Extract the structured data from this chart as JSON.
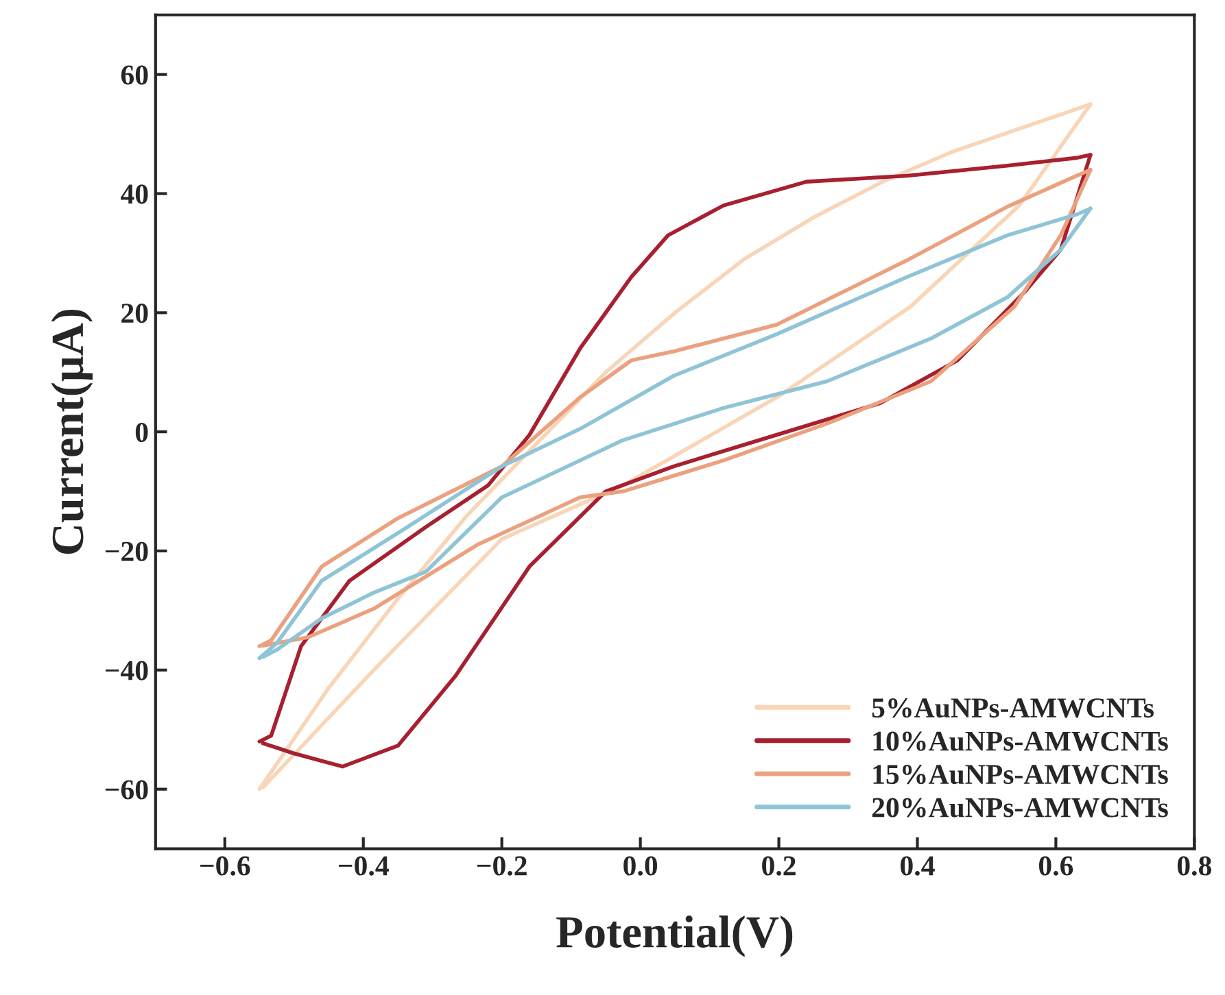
{
  "chart_data": {
    "type": "line",
    "xlabel": "Potential(V)",
    "ylabel": "Current(μA)",
    "xlim": [
      -0.7,
      0.8
    ],
    "ylim": [
      -70,
      70
    ],
    "xticks": [
      {
        "value": -0.6,
        "label": "−0.6"
      },
      {
        "value": -0.4,
        "label": "−0.4"
      },
      {
        "value": -0.2,
        "label": "−0.2"
      },
      {
        "value": 0.0,
        "label": "0.0"
      },
      {
        "value": 0.2,
        "label": "0.2"
      },
      {
        "value": 0.4,
        "label": "0.4"
      },
      {
        "value": 0.6,
        "label": "0.6"
      },
      {
        "value": 0.8,
        "label": "0.8"
      }
    ],
    "yticks": [
      {
        "value": -60,
        "label": "−60"
      },
      {
        "value": -40,
        "label": "−40"
      },
      {
        "value": -20,
        "label": "−20"
      },
      0,
      20,
      40,
      60
    ],
    "grid": false,
    "legend": "bottom right",
    "marker": "none",
    "line_style": "solid",
    "series": [
      {
        "name": "5%AuNPs-AMWCNTs",
        "color": "#f9d5b8",
        "x": [
          -0.55,
          -0.45,
          -0.35,
          -0.25,
          -0.15,
          -0.05,
          0.05,
          0.15,
          0.25,
          0.35,
          0.45,
          0.55,
          0.65
        ],
        "values": [
          -60,
          -43,
          -28,
          -14,
          -2,
          10,
          20,
          29,
          36,
          42,
          47,
          51,
          55
        ]
      },
      {
        "color": "#f9d5b8",
        "x": [
          0.65,
          0.547,
          0.39,
          0.2,
          -0.025,
          -0.2,
          -0.385,
          -0.545
        ],
        "values": [
          55,
          38,
          21,
          6,
          -9,
          -18,
          -40,
          -59.7
        ]
      },
      {
        "name": "10%AuNPs-AMWCNTs",
        "color": "#a8202f",
        "x": [
          -0.55,
          -0.533,
          -0.49,
          -0.42,
          -0.31,
          -0.22,
          -0.16,
          -0.087,
          -0.013,
          0.04,
          0.12,
          0.24,
          0.385,
          0.53,
          0.63,
          0.65
        ],
        "values": [
          -52,
          -51,
          -36,
          -25,
          -16,
          -9,
          -0.5,
          14,
          26,
          33,
          38,
          42,
          43,
          44.7,
          46,
          46.5
        ]
      },
      {
        "color": "#a8202f",
        "x": [
          0.65,
          0.607,
          0.555,
          0.458,
          0.346,
          0.197,
          0.048,
          -0.05,
          -0.16,
          -0.267,
          -0.35,
          -0.43,
          -0.5,
          -0.545
        ],
        "values": [
          46.5,
          30.6,
          23.5,
          12,
          4.8,
          -0.5,
          -5.8,
          -10,
          -22.6,
          -41,
          -52.7,
          -56.2,
          -54,
          -52.3
        ]
      },
      {
        "name": "15%AuNPs-AMWCNTs",
        "color": "#eba07e",
        "x": [
          -0.55,
          -0.533,
          -0.46,
          -0.35,
          -0.2,
          -0.087,
          -0.013,
          0.048,
          0.197,
          0.385,
          0.53,
          0.63,
          0.65
        ],
        "values": [
          -36,
          -35,
          -22.6,
          -14.5,
          -5.8,
          5.8,
          12,
          13.5,
          18,
          28.8,
          37.8,
          43,
          44
        ]
      },
      {
        "color": "#eba07e",
        "x": [
          0.65,
          0.607,
          0.54,
          0.42,
          0.27,
          0.12,
          -0.025,
          -0.087,
          -0.236,
          -0.385,
          -0.48,
          -0.545
        ],
        "values": [
          44,
          33,
          21,
          8.5,
          1.4,
          -4.8,
          -10,
          -11,
          -19,
          -29.7,
          -34.5,
          -35.9
        ]
      },
      {
        "name": "20%AuNPs-AMWCNTs",
        "color": "#8fc4d6",
        "x": [
          -0.55,
          -0.525,
          -0.46,
          -0.35,
          -0.2,
          -0.087,
          0.048,
          0.197,
          0.385,
          0.53,
          0.63,
          0.65
        ],
        "values": [
          -38,
          -35.5,
          -25,
          -17,
          -5.8,
          0.5,
          9.4,
          16.4,
          26,
          33,
          36.5,
          37.5
        ]
      },
      {
        "color": "#8fc4d6",
        "x": [
          0.65,
          0.607,
          0.53,
          0.42,
          0.27,
          0.12,
          -0.025,
          -0.2,
          -0.31,
          -0.385,
          -0.46,
          -0.525,
          -0.545
        ],
        "values": [
          37.5,
          30.6,
          22.6,
          15.7,
          8.5,
          4,
          -1.4,
          -11,
          -23.5,
          -27,
          -31.3,
          -36.6,
          -37.8
        ]
      }
    ]
  }
}
